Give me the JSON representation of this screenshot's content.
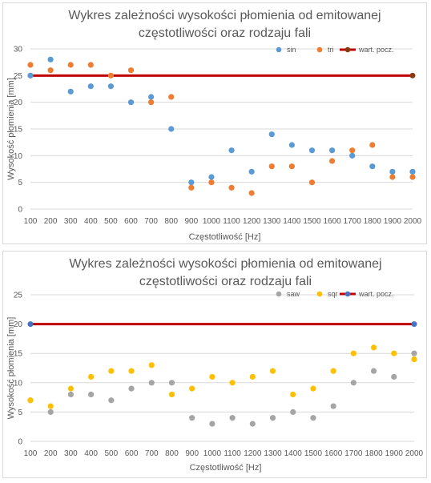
{
  "chart_data": [
    {
      "type": "scatter",
      "title": [
        "Wykres zależności wysokości płomienia od emitowanej",
        "częstotliwości oraz rodzaju fali"
      ],
      "xlabel": "Częstotliwość [Hz]",
      "ylabel": "Wysokość płomienia [mm]",
      "x": [
        100,
        200,
        300,
        400,
        500,
        600,
        700,
        800,
        900,
        1000,
        1100,
        1200,
        1300,
        1400,
        1500,
        1600,
        1700,
        1800,
        1900,
        2000
      ],
      "xlim": [
        100,
        2000
      ],
      "ylim": [
        0,
        30
      ],
      "yticks": [
        0,
        5,
        10,
        15,
        20,
        25,
        30
      ],
      "grid": true,
      "legend": "top-right",
      "series": [
        {
          "name": "sin",
          "color": "#5B9BD5",
          "values": [
            25,
            28,
            22,
            23,
            23,
            20,
            21,
            15,
            5,
            6,
            11,
            7,
            14,
            12,
            11,
            11,
            10,
            8,
            7,
            7
          ]
        },
        {
          "name": "tri",
          "color": "#ED7D31",
          "values": [
            27,
            26,
            27,
            27,
            25,
            26,
            20,
            21,
            4,
            5,
            4,
            3,
            8,
            8,
            5,
            9,
            11,
            12,
            6,
            6
          ]
        }
      ],
      "reference": {
        "name": "wart. pocz.",
        "value": 25,
        "color": "#C00000",
        "marker_color": "#843C0C"
      }
    },
    {
      "type": "scatter",
      "title": [
        "Wykres zależności wysokości płomienia od emitowanej",
        "częstotliwości oraz rodzaju fali"
      ],
      "xlabel": "Częstotliwość [Hz]",
      "ylabel": "Wysokość płomienia [mm]",
      "x": [
        100,
        200,
        300,
        400,
        500,
        600,
        700,
        800,
        900,
        1000,
        1100,
        1200,
        1300,
        1400,
        1500,
        1600,
        1700,
        1800,
        1900,
        2000
      ],
      "xlim": [
        100,
        2000
      ],
      "ylim": [
        0,
        25
      ],
      "yticks": [
        0,
        5,
        10,
        15,
        20,
        25
      ],
      "grid": true,
      "legend": "top-right",
      "series": [
        {
          "name": "saw",
          "color": "#A5A5A5",
          "values": [
            7,
            5,
            8,
            8,
            7,
            9,
            10,
            10,
            4,
            3,
            4,
            3,
            4,
            5,
            4,
            6,
            10,
            12,
            11,
            15
          ]
        },
        {
          "name": "sqr",
          "color": "#FFC000",
          "values": [
            7,
            6,
            9,
            11,
            12,
            12,
            13,
            8,
            9,
            11,
            10,
            11,
            12,
            8,
            9,
            12,
            15,
            16,
            15,
            14
          ]
        }
      ],
      "reference": {
        "name": "wart. pocz.",
        "value": 20,
        "color": "#C00000",
        "marker_color": "#4472C4"
      }
    }
  ]
}
